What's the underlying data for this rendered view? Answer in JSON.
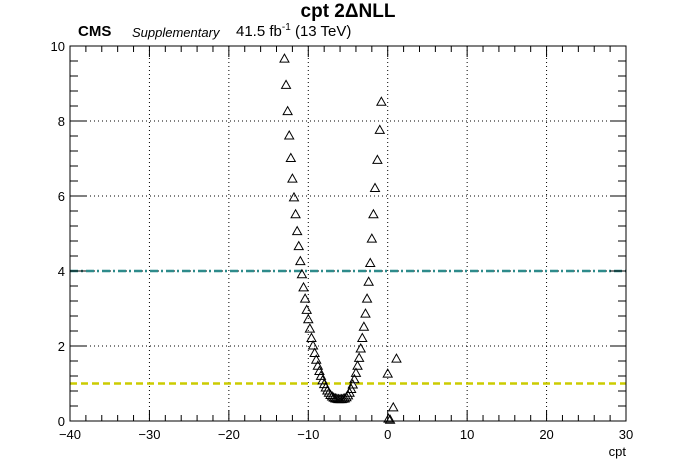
{
  "header": {
    "title": "cpt 2ΔNLL",
    "experiment": "CMS",
    "label": "Supplementary",
    "lumi_value": "41.5 fb",
    "lumi_exp": "-1",
    "energy": "(13 TeV)"
  },
  "chart_data": {
    "type": "scatter",
    "xlabel": "cpt",
    "ylabel": "",
    "xlim": [
      -40,
      30
    ],
    "ylim": [
      0,
      10
    ],
    "x_ticks": [
      -40,
      -30,
      -20,
      -10,
      0,
      10,
      20,
      30
    ],
    "y_ticks": [
      0,
      2,
      4,
      6,
      8,
      10
    ],
    "grid": true,
    "marker": "open-triangle",
    "reference_lines": [
      {
        "y": 4,
        "color": "#2e8b8b",
        "style": "dash-dot"
      },
      {
        "y": 1,
        "color": "#cccc00",
        "style": "dashed"
      }
    ],
    "series": [
      {
        "points": [
          [
            -13.0,
            9.65
          ],
          [
            -12.8,
            8.95
          ],
          [
            -12.6,
            8.25
          ],
          [
            -12.4,
            7.6
          ],
          [
            -12.2,
            7.0
          ],
          [
            -12.0,
            6.45
          ],
          [
            -11.8,
            5.95
          ],
          [
            -11.6,
            5.5
          ],
          [
            -11.4,
            5.05
          ],
          [
            -11.2,
            4.65
          ],
          [
            -11.0,
            4.25
          ],
          [
            -10.8,
            3.9
          ],
          [
            -10.6,
            3.55
          ],
          [
            -10.4,
            3.25
          ],
          [
            -10.2,
            2.95
          ],
          [
            -10.0,
            2.7
          ],
          [
            -9.8,
            2.45
          ],
          [
            -9.6,
            2.2
          ],
          [
            -9.4,
            2.0
          ],
          [
            -9.2,
            1.8
          ],
          [
            -9.0,
            1.62
          ],
          [
            -8.8,
            1.46
          ],
          [
            -8.6,
            1.32
          ],
          [
            -8.4,
            1.19
          ],
          [
            -8.2,
            1.07
          ],
          [
            -8.0,
            0.97
          ],
          [
            -7.8,
            0.88
          ],
          [
            -7.6,
            0.8
          ],
          [
            -7.4,
            0.74
          ],
          [
            -7.2,
            0.68
          ],
          [
            -7.0,
            0.64
          ],
          [
            -6.8,
            0.61
          ],
          [
            -6.6,
            0.59
          ],
          [
            -6.4,
            0.58
          ],
          [
            -6.2,
            0.57
          ],
          [
            -6.0,
            0.57
          ],
          [
            -5.8,
            0.57
          ],
          [
            -5.6,
            0.58
          ],
          [
            -5.4,
            0.59
          ],
          [
            -5.2,
            0.62
          ],
          [
            -5.0,
            0.67
          ],
          [
            -4.8,
            0.74
          ],
          [
            -4.6,
            0.84
          ],
          [
            -4.4,
            0.96
          ],
          [
            -4.2,
            1.1
          ],
          [
            -4.0,
            1.27
          ],
          [
            -3.8,
            1.46
          ],
          [
            -3.6,
            1.67
          ],
          [
            -3.4,
            1.92
          ],
          [
            -3.2,
            2.2
          ],
          [
            -3.0,
            2.5
          ],
          [
            -2.8,
            2.85
          ],
          [
            -2.6,
            3.25
          ],
          [
            -2.4,
            3.7
          ],
          [
            -2.2,
            4.2
          ],
          [
            -2.0,
            4.85
          ],
          [
            -1.8,
            5.5
          ],
          [
            -1.6,
            6.2
          ],
          [
            -1.3,
            6.95
          ],
          [
            -1.0,
            7.75
          ],
          [
            -0.8,
            8.5
          ],
          [
            0.0,
            1.25
          ],
          [
            0.1,
            0.05
          ],
          [
            0.3,
            0.02
          ],
          [
            0.7,
            0.35
          ],
          [
            1.1,
            1.65
          ]
        ]
      }
    ]
  }
}
